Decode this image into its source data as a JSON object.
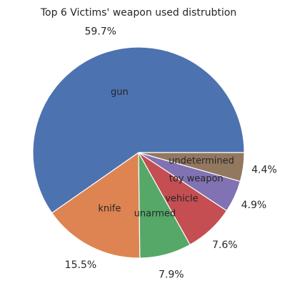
{
  "chart_data": {
    "type": "pie",
    "title": "Top 6 Victims' weapon used distrubtion",
    "categories": [
      "gun",
      "knife",
      "unarmed",
      "vehicle",
      "toy weapon",
      "undetermined"
    ],
    "values": [
      59.7,
      15.5,
      7.9,
      7.6,
      4.9,
      4.4
    ],
    "percent_labels": [
      "59.7%",
      "15.5%",
      "7.9%",
      "7.6%",
      "4.9%",
      "4.4%"
    ],
    "colors": [
      "#4c72b0",
      "#dd8452",
      "#55a868",
      "#c44e52",
      "#8172b3",
      "#937860"
    ],
    "start_angle_deg": 0,
    "direction": "counterclockwise",
    "edge_color": "#ffffff",
    "legend": "none"
  }
}
